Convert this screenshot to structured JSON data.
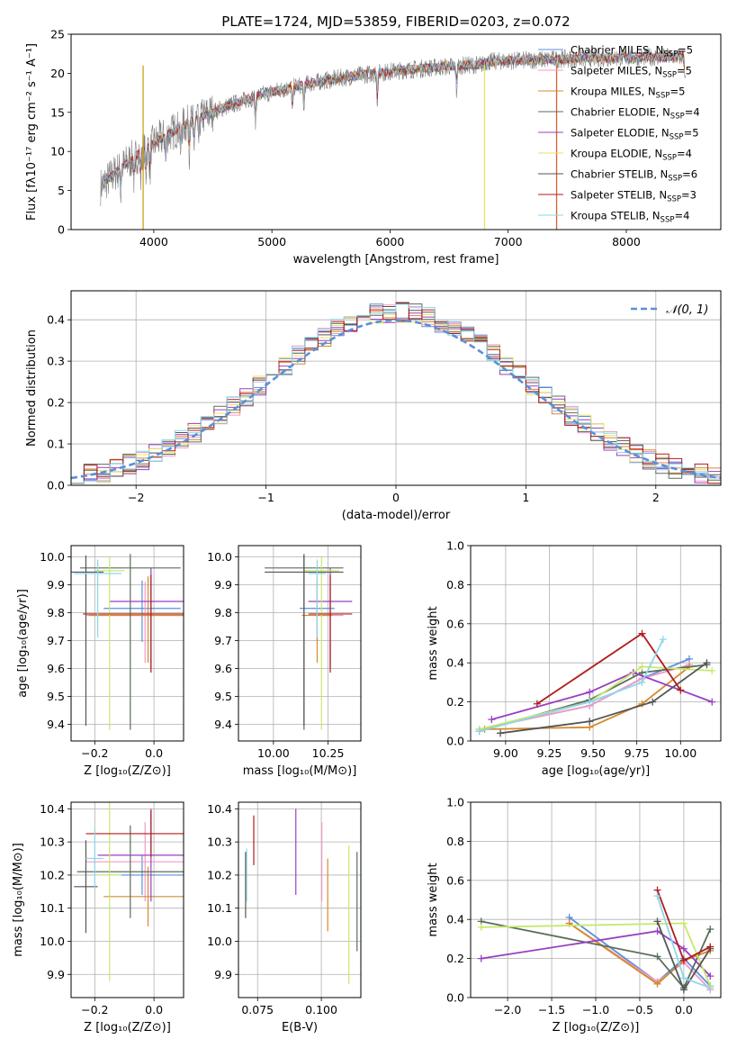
{
  "chart_data": [
    {
      "type": "line",
      "title": "PLATE=1724, MJD=53859, FIBERID=0203, z=0.072",
      "xlabel": "wavelength [Angstrom, rest frame]",
      "ylabel": "Flux [fλ10⁻¹⁷ erg cm⁻² s⁻¹ A⁻¹]",
      "xlim": [
        3300,
        8800
      ],
      "ylim": [
        0,
        25
      ],
      "xticks": [
        "4000",
        "5000",
        "6000",
        "7000",
        "8000"
      ],
      "xtick_values": [
        4000,
        5000,
        6000,
        7000,
        8000
      ],
      "yticks": [
        "0",
        "5",
        "10",
        "15",
        "20",
        "25"
      ],
      "ytick_values": [
        0,
        5,
        10,
        15,
        20,
        25
      ],
      "grid": false,
      "legend_position": "right",
      "spectrum_range": [
        3550,
        8500
      ],
      "series": [
        {
          "name": "Chabrier MILES, N_SSP=5",
          "color": "#5b8fd9",
          "nssp": "5"
        },
        {
          "name": "Salpeter MILES, N_SSP=5",
          "color": "#f19ac6",
          "nssp": "5"
        },
        {
          "name": "Kroupa MILES, N_SSP=5",
          "color": "#d68a2e",
          "nssp": "5"
        },
        {
          "name": "Chabrier ELODIE, N_SSP=4",
          "color": "#5a6e5a",
          "nssp": "4"
        },
        {
          "name": "Salpeter ELODIE, N_SSP=5",
          "color": "#9a3fbf",
          "nssp": "5"
        },
        {
          "name": "Kroupa ELODIE, N_SSP=4",
          "color": "#ece05f",
          "nssp": "4"
        },
        {
          "name": "Chabrier STELIB, N_SSP=6",
          "color": "#555555",
          "nssp": "6"
        },
        {
          "name": "Salpeter STELIB, N_SSP=3",
          "color": "#b01c1c",
          "nssp": "3"
        },
        {
          "name": "Kroupa STELIB, N_SSP=4",
          "color": "#8ed6ea",
          "nssp": "4"
        }
      ],
      "data_color": "#808080",
      "cutoffs": [
        {
          "x": 3910,
          "color": "#d4a017"
        },
        {
          "x": 6800,
          "color": "#ece05f"
        },
        {
          "x": 7410,
          "color": "#d6602e"
        }
      ]
    },
    {
      "type": "histogram",
      "xlabel": "(data-model)/error",
      "ylabel": "Normed distribution",
      "xlim": [
        -2.5,
        2.5
      ],
      "ylim": [
        0,
        0.47
      ],
      "xticks": [
        "−2",
        "−1",
        "0",
        "1",
        "2"
      ],
      "xtick_values": [
        -2,
        -1,
        0,
        1,
        2
      ],
      "yticks": [
        "0.0",
        "0.1",
        "0.2",
        "0.3",
        "0.4"
      ],
      "ytick_values": [
        0,
        0.1,
        0.2,
        0.3,
        0.4
      ],
      "grid": true,
      "legend_position": "top-right",
      "legend": "𝒩(0, 1)",
      "gaussian_color": "#5b8fd9",
      "bin_width": 0.1
    },
    {
      "type": "errorbar",
      "xlabel": "Z [log₁₀(Z/Z⊙)]",
      "ylabel": "age  [log₁₀(age/yr)]",
      "xlim": [
        -0.28,
        0.1
      ],
      "ylim": [
        9.34,
        10.04
      ],
      "xticks": [
        "−0.2",
        "0.0"
      ],
      "xtick_values": [
        -0.2,
        0.0
      ],
      "yticks": [
        "9.4",
        "9.5",
        "9.6",
        "9.7",
        "9.8",
        "9.9",
        "10.0"
      ],
      "ytick_values": [
        9.4,
        9.5,
        9.6,
        9.7,
        9.8,
        9.9,
        10.0
      ],
      "grid": true,
      "points": [
        {
          "x": -0.04,
          "xerr": 0.13,
          "y": 9.815,
          "yerr": [
            0.12,
            0.1
          ],
          "color": "#5b8fd9"
        },
        {
          "x": -0.03,
          "xerr": 0.2,
          "y": 9.79,
          "yerr": [
            0.17,
            0.12
          ],
          "color": "#f19ac6"
        },
        {
          "x": -0.02,
          "xerr": 0.2,
          "y": 9.79,
          "yerr": [
            0.17,
            0.14
          ],
          "color": "#d68a2e"
        },
        {
          "x": -0.08,
          "xerr": 0.17,
          "y": 9.96,
          "yerr": [
            0.58,
            0.05
          ],
          "color": "#5a6e5a"
        },
        {
          "x": -0.01,
          "xerr": 0.14,
          "y": 9.84,
          "yerr": [
            0.24,
            0.12
          ],
          "color": "#9a3fbf"
        },
        {
          "x": -0.15,
          "xerr": 0.05,
          "y": 9.95,
          "yerr": [
            0.57,
            0.05
          ],
          "color": "#c8e86b"
        },
        {
          "x": -0.23,
          "xerr": 0.06,
          "y": 9.945,
          "yerr": [
            0.55,
            0.06
          ],
          "color": "#555555"
        },
        {
          "x": -0.01,
          "xerr": 0.23,
          "y": 9.795,
          "yerr": [
            0.21,
            0.14
          ],
          "color": "#b01c1c"
        },
        {
          "x": -0.19,
          "xerr": 0.08,
          "y": 9.94,
          "yerr": [
            0.23,
            0.05
          ],
          "color": "#8ed6ea"
        }
      ]
    },
    {
      "type": "errorbar",
      "xlabel": "mass [log₁₀(M/M⊙)]",
      "ylabel": "",
      "xlim": [
        9.84,
        10.4
      ],
      "ylim": [
        9.34,
        10.04
      ],
      "xticks": [
        "10.00",
        "10.25"
      ],
      "xtick_values": [
        10.0,
        10.25
      ],
      "yticks": [
        "9.4",
        "9.5",
        "9.6",
        "9.7",
        "9.8",
        "9.9",
        "10.0"
      ],
      "ytick_values": [
        9.4,
        9.5,
        9.6,
        9.7,
        9.8,
        9.9,
        10.0
      ],
      "grid": true,
      "points": [
        {
          "x": 10.2,
          "xerr": 0.08,
          "y": 9.815,
          "yerr": [
            0.12,
            0.1
          ],
          "color": "#5b8fd9"
        },
        {
          "x": 10.26,
          "xerr": 0.06,
          "y": 9.79,
          "yerr": [
            0.17,
            0.12
          ],
          "color": "#f19ac6"
        },
        {
          "x": 10.2,
          "xerr": 0.07,
          "y": 9.79,
          "yerr": [
            0.17,
            0.14
          ],
          "color": "#d68a2e"
        },
        {
          "x": 10.14,
          "xerr": 0.18,
          "y": 9.96,
          "yerr": [
            0.58,
            0.05
          ],
          "color": "#5a6e5a"
        },
        {
          "x": 10.26,
          "xerr": 0.1,
          "y": 9.84,
          "yerr": [
            0.24,
            0.12
          ],
          "color": "#9a3fbf"
        },
        {
          "x": 10.22,
          "xerr": 0.08,
          "y": 9.95,
          "yerr": [
            0.57,
            0.05
          ],
          "color": "#c8e86b"
        },
        {
          "x": 10.14,
          "xerr": 0.18,
          "y": 9.945,
          "yerr": [
            0.55,
            0.06
          ],
          "color": "#555555"
        },
        {
          "x": 10.26,
          "xerr": 0.1,
          "y": 9.795,
          "yerr": [
            0.21,
            0.14
          ],
          "color": "#b01c1c"
        },
        {
          "x": 10.2,
          "xerr": 0.04,
          "y": 9.94,
          "yerr": [
            0.23,
            0.05
          ],
          "color": "#8ed6ea"
        }
      ]
    },
    {
      "type": "line",
      "xlabel": "age  [log₁₀(age/yr)]",
      "ylabel": "mass weight",
      "xlim": [
        8.8,
        10.23
      ],
      "ylim": [
        0,
        1
      ],
      "xticks": [
        "9.00",
        "9.25",
        "9.50",
        "9.75",
        "10.00"
      ],
      "xtick_values": [
        9.0,
        9.25,
        9.5,
        9.75,
        10.0
      ],
      "yticks": [
        "0.0",
        "0.2",
        "0.4",
        "0.6",
        "0.8",
        "1.0"
      ],
      "ytick_values": [
        0,
        0.2,
        0.4,
        0.6,
        0.8,
        1.0
      ],
      "grid": true,
      "series": [
        {
          "color": "#5b8fd9",
          "x": [
            8.85,
            9.48,
            9.78,
            10.05
          ],
          "y": [
            0.06,
            0.18,
            0.32,
            0.42
          ]
        },
        {
          "color": "#f19ac6",
          "x": [
            8.85,
            9.48,
            9.78,
            10.05
          ],
          "y": [
            0.06,
            0.18,
            0.32,
            0.39
          ]
        },
        {
          "color": "#d68a2e",
          "x": [
            8.88,
            9.48,
            9.78,
            10.05
          ],
          "y": [
            0.06,
            0.07,
            0.19,
            0.38
          ]
        },
        {
          "color": "#5a6e5a",
          "x": [
            8.85,
            9.48,
            9.78,
            10.15
          ],
          "y": [
            0.05,
            0.21,
            0.35,
            0.39
          ]
        },
        {
          "color": "#9a3fbf",
          "x": [
            8.92,
            9.48,
            9.73,
            10.18
          ],
          "y": [
            0.11,
            0.25,
            0.35,
            0.2
          ]
        },
        {
          "color": "#c8e86b",
          "x": [
            8.85,
            9.48,
            9.78,
            10.18
          ],
          "y": [
            0.06,
            0.2,
            0.38,
            0.36
          ]
        },
        {
          "color": "#555555",
          "x": [
            8.97,
            9.48,
            9.84,
            10.15
          ],
          "y": [
            0.04,
            0.1,
            0.2,
            0.4
          ]
        },
        {
          "color": "#b01c1c",
          "x": [
            9.18,
            9.78,
            10.0
          ],
          "y": [
            0.19,
            0.55,
            0.26
          ]
        },
        {
          "color": "#8ed6ea",
          "x": [
            8.85,
            9.48,
            9.78,
            9.9
          ],
          "y": [
            0.05,
            0.2,
            0.3,
            0.52
          ]
        }
      ]
    },
    {
      "type": "errorbar",
      "xlabel": "Z [log₁₀(Z/Z⊙)]",
      "ylabel": "mass [log₁₀(M/M⊙)]",
      "xlim": [
        -0.28,
        0.1
      ],
      "ylim": [
        9.83,
        10.42
      ],
      "xticks": [
        "−0.2",
        "0.0"
      ],
      "xtick_values": [
        -0.2,
        0.0
      ],
      "yticks": [
        "9.9",
        "10.0",
        "10.1",
        "10.2",
        "10.3",
        "10.4"
      ],
      "ytick_values": [
        9.9,
        10.0,
        10.1,
        10.2,
        10.3,
        10.4
      ],
      "grid": true,
      "points": [
        {
          "x": -0.04,
          "xerr": 0.15,
          "y": 10.2,
          "yerr": 0.06,
          "color": "#5b8fd9"
        },
        {
          "x": -0.03,
          "xerr": 0.2,
          "y": 10.24,
          "yerr": 0.12,
          "color": "#f19ac6"
        },
        {
          "x": -0.02,
          "xerr": 0.15,
          "y": 10.135,
          "yerr": 0.09,
          "color": "#d68a2e"
        },
        {
          "x": -0.08,
          "xerr": 0.18,
          "y": 10.21,
          "yerr": 0.14,
          "color": "#5a6e5a"
        },
        {
          "x": -0.01,
          "xerr": 0.18,
          "y": 10.26,
          "yerr": 0.14,
          "color": "#9a3fbf"
        },
        {
          "x": -0.15,
          "xerr": 0.04,
          "y": 10.2,
          "yerr": 0.32,
          "color": "#c8e86b"
        },
        {
          "x": -0.23,
          "xerr": 0.04,
          "y": 10.165,
          "yerr": 0.14,
          "color": "#555555"
        },
        {
          "x": -0.01,
          "xerr": 0.22,
          "y": 10.325,
          "yerr": 0.07,
          "color": "#b01c1c"
        },
        {
          "x": -0.2,
          "xerr": 0.03,
          "y": 10.25,
          "yerr": 0.09,
          "color": "#8ed6ea"
        }
      ]
    },
    {
      "type": "errorbar",
      "xlabel": "E(B-V)",
      "ylabel": "",
      "xlim": [
        0.0675,
        0.1155
      ],
      "ylim": [
        9.83,
        10.42
      ],
      "xticks": [
        "0.075",
        "0.100"
      ],
      "xtick_values": [
        0.075,
        0.1
      ],
      "yticks": [
        "9.9",
        "10.0",
        "10.1",
        "10.2",
        "10.3",
        "10.4"
      ],
      "ytick_values": [
        9.9,
        10.0,
        10.1,
        10.2,
        10.3,
        10.4
      ],
      "grid": true,
      "points": [
        {
          "x": 0.0705,
          "y": 10.2,
          "yerr": 0.06,
          "color": "#5b8fd9"
        },
        {
          "x": 0.1002,
          "y": 10.24,
          "yerr": 0.12,
          "color": "#f19ac6"
        },
        {
          "x": 0.1025,
          "y": 10.14,
          "yerr": 0.11,
          "color": "#d68a2e"
        },
        {
          "x": 0.114,
          "y": 10.12,
          "yerr": 0.15,
          "color": "#5a6e5a"
        },
        {
          "x": 0.09,
          "y": 10.27,
          "yerr": 0.13,
          "color": "#9a3fbf"
        },
        {
          "x": 0.1108,
          "y": 10.08,
          "yerr": 0.21,
          "color": "#c8e86b"
        },
        {
          "x": 0.0703,
          "y": 10.17,
          "yerr": 0.1,
          "color": "#555555"
        },
        {
          "x": 0.0735,
          "y": 10.305,
          "yerr": 0.075,
          "color": "#b01c1c"
        },
        {
          "x": 0.0707,
          "y": 10.2,
          "yerr": 0.08,
          "color": "#8ed6ea"
        }
      ]
    },
    {
      "type": "line",
      "xlabel": "Z [log₁₀(Z/Z⊙)]",
      "ylabel": "mass weight",
      "xlim": [
        -2.42,
        0.42
      ],
      "ylim": [
        0,
        1
      ],
      "xticks": [
        "−2.0",
        "−1.5",
        "−1.0",
        "−0.5",
        "0.0"
      ],
      "xtick_values": [
        -2.0,
        -1.5,
        -1.0,
        -0.5,
        0.0
      ],
      "yticks": [
        "0.0",
        "0.2",
        "0.4",
        "0.6",
        "0.8",
        "1.0"
      ],
      "ytick_values": [
        0,
        0.2,
        0.4,
        0.6,
        0.8,
        1.0
      ],
      "grid": true,
      "series": [
        {
          "color": "#5b8fd9",
          "x": [
            -1.3,
            -0.3,
            0.0,
            0.3
          ],
          "y": [
            0.41,
            0.08,
            0.2,
            0.06
          ]
        },
        {
          "color": "#f19ac6",
          "x": [
            -1.3,
            -0.3,
            0.0,
            0.3
          ],
          "y": [
            0.38,
            0.08,
            0.18,
            0.04
          ]
        },
        {
          "color": "#d68a2e",
          "x": [
            -1.3,
            -0.3,
            0.0,
            0.3
          ],
          "y": [
            0.38,
            0.07,
            0.19,
            0.24
          ]
        },
        {
          "color": "#5a6e5a",
          "x": [
            -2.3,
            -0.3,
            0.0,
            0.3
          ],
          "y": [
            0.39,
            0.21,
            0.05,
            0.35
          ]
        },
        {
          "color": "#9a3fbf",
          "x": [
            -2.3,
            -0.3,
            0.0,
            0.3
          ],
          "y": [
            0.2,
            0.34,
            0.25,
            0.11
          ]
        },
        {
          "color": "#c8e86b",
          "x": [
            -2.3,
            0.0,
            0.3
          ],
          "y": [
            0.36,
            0.38,
            0.06
          ]
        },
        {
          "color": "#555555",
          "x": [
            -0.3,
            0.0,
            0.3
          ],
          "y": [
            0.39,
            0.04,
            0.25
          ]
        },
        {
          "color": "#b01c1c",
          "x": [
            -0.3,
            0.0,
            0.3
          ],
          "y": [
            0.55,
            0.19,
            0.26
          ]
        },
        {
          "color": "#8ed6ea",
          "x": [
            -0.3,
            0.0,
            0.3
          ],
          "y": [
            0.52,
            0.1,
            0.05
          ]
        }
      ]
    }
  ]
}
